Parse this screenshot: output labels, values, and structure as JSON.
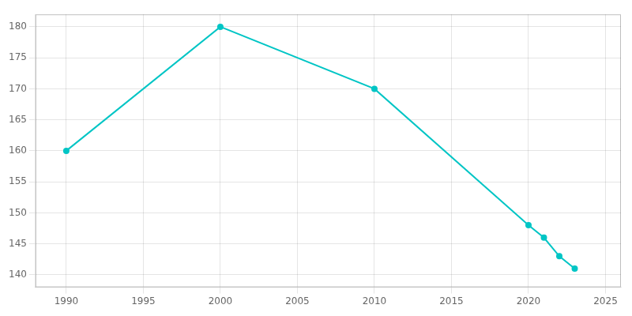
{
  "chart_data": {
    "type": "line",
    "x": [
      1990,
      2000,
      2010,
      2020,
      2021,
      2022,
      2023
    ],
    "values": [
      160,
      180,
      170,
      148,
      146,
      143,
      141
    ],
    "color": "#00C5C5",
    "marker": "circle",
    "xlim": [
      1988,
      2026
    ],
    "ylim": [
      138,
      182
    ],
    "xticks": [
      1990,
      1995,
      2000,
      2005,
      2010,
      2015,
      2020,
      2025
    ],
    "yticks": [
      140,
      145,
      150,
      155,
      160,
      165,
      170,
      175,
      180
    ],
    "grid": true
  }
}
